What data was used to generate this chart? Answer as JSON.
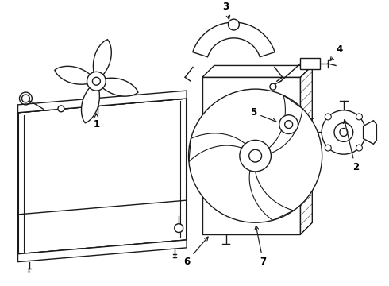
{
  "background_color": "#ffffff",
  "line_color": "#1a1a1a",
  "line_width": 1.0,
  "figsize": [
    4.9,
    3.6
  ],
  "dpi": 100,
  "xlim": [
    0,
    49
  ],
  "ylim": [
    0,
    36
  ]
}
